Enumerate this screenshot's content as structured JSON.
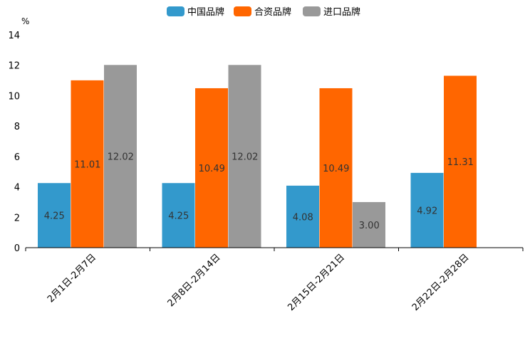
{
  "chart_data": {
    "type": "bar",
    "title": "",
    "xlabel": "",
    "ylabel": "%",
    "ylim": [
      0,
      14
    ],
    "yticks": [
      0,
      2,
      4,
      6,
      8,
      10,
      12,
      14
    ],
    "legend_position": "top-center",
    "grid": false,
    "categories": [
      "2月1日-2月7日",
      "2月8日-2月14日",
      "2月15日-2月21日",
      "2月22日-2月28日"
    ],
    "series": [
      {
        "name": "中国品牌",
        "color": "#3399CC",
        "values": [
          4.25,
          4.25,
          4.08,
          4.92
        ],
        "labels": [
          "4.25",
          "4.25",
          "4.08",
          "4.92"
        ]
      },
      {
        "name": "合资品牌",
        "color": "#FF6600",
        "values": [
          11.01,
          10.49,
          10.49,
          11.31
        ],
        "labels": [
          "11.01",
          "10.49",
          "10.49",
          "11.31"
        ]
      },
      {
        "name": "进口品牌",
        "color": "#999999",
        "values": [
          12.02,
          12.02,
          3.0,
          null
        ],
        "labels": [
          "12.02",
          "12.02",
          "3.00",
          null
        ]
      }
    ]
  }
}
